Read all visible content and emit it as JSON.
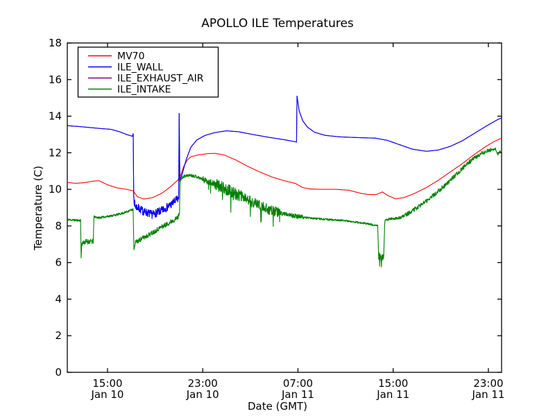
{
  "chart_data": {
    "type": "line",
    "title": "APOLLO ILE Temperatures",
    "xlabel": "Date (GMT)",
    "ylabel": "Temperature (C)",
    "ylim": [
      0,
      18
    ],
    "yticks": [
      0,
      2,
      4,
      6,
      8,
      10,
      12,
      14,
      16,
      18
    ],
    "x_unit": "hours since Jan 10 00:00 GMT",
    "xlim_hours": [
      11.62,
      48.11
    ],
    "xticks": [
      {
        "hour": 15,
        "time": "15:00",
        "date": "Jan 10"
      },
      {
        "hour": 23,
        "time": "23:00",
        "date": "Jan 10"
      },
      {
        "hour": 31,
        "time": "07:00",
        "date": "Jan 11"
      },
      {
        "hour": 39,
        "time": "15:00",
        "date": "Jan 11"
      },
      {
        "hour": 47,
        "time": "23:00",
        "date": "Jan 11"
      }
    ],
    "grid": false,
    "legend_position": "upper left",
    "series": [
      {
        "name": "MV70",
        "color": "#ff0000",
        "keypoints": [
          [
            11.62,
            10.38
          ],
          [
            12.3,
            10.33
          ],
          [
            13.0,
            10.36
          ],
          [
            13.8,
            10.45
          ],
          [
            14.3,
            10.47
          ],
          [
            15.0,
            10.25
          ],
          [
            15.8,
            10.08
          ],
          [
            16.6,
            10.0
          ],
          [
            17.15,
            9.92
          ],
          [
            17.5,
            9.6
          ],
          [
            18.05,
            9.47
          ],
          [
            18.8,
            9.55
          ],
          [
            19.6,
            9.8
          ],
          [
            20.3,
            10.15
          ],
          [
            20.9,
            10.5
          ],
          [
            21.1,
            10.68
          ],
          [
            21.4,
            11.25
          ],
          [
            21.7,
            11.6
          ],
          [
            22.0,
            11.78
          ],
          [
            22.6,
            11.88
          ],
          [
            23.4,
            11.95
          ],
          [
            24.0,
            11.97
          ],
          [
            24.8,
            11.88
          ],
          [
            25.8,
            11.6
          ],
          [
            26.8,
            11.25
          ],
          [
            27.8,
            10.95
          ],
          [
            28.8,
            10.68
          ],
          [
            29.8,
            10.48
          ],
          [
            30.8,
            10.32
          ],
          [
            31.4,
            10.1
          ],
          [
            32.0,
            10.02
          ],
          [
            33.0,
            10.0
          ],
          [
            34.2,
            10.0
          ],
          [
            35.3,
            9.95
          ],
          [
            36.3,
            9.78
          ],
          [
            36.9,
            9.72
          ],
          [
            37.6,
            9.72
          ],
          [
            38.1,
            9.86
          ],
          [
            38.5,
            9.68
          ],
          [
            39.2,
            9.48
          ],
          [
            39.9,
            9.55
          ],
          [
            40.8,
            9.78
          ],
          [
            41.8,
            10.1
          ],
          [
            42.8,
            10.5
          ],
          [
            43.8,
            10.95
          ],
          [
            44.8,
            11.4
          ],
          [
            45.8,
            11.9
          ],
          [
            46.8,
            12.35
          ],
          [
            47.5,
            12.62
          ],
          [
            48.11,
            12.8
          ]
        ],
        "noise": []
      },
      {
        "name": "ILE_WALL",
        "color": "#0000ff",
        "keypoints": [
          [
            11.62,
            13.48
          ],
          [
            12.5,
            13.44
          ],
          [
            13.5,
            13.38
          ],
          [
            14.5,
            13.32
          ],
          [
            15.3,
            13.28
          ],
          [
            16.0,
            13.15
          ],
          [
            16.6,
            13.0
          ],
          [
            17.1,
            12.9
          ],
          [
            17.16,
            13.05
          ],
          [
            17.2,
            9.6
          ],
          [
            17.3,
            9.1
          ],
          [
            18.0,
            8.8
          ],
          [
            18.75,
            8.62
          ],
          [
            19.5,
            8.82
          ],
          [
            20.3,
            9.15
          ],
          [
            20.85,
            9.45
          ],
          [
            20.98,
            9.5
          ],
          [
            21.02,
            14.15
          ],
          [
            21.08,
            10.45
          ],
          [
            21.3,
            10.9
          ],
          [
            21.6,
            11.6
          ],
          [
            22.0,
            12.3
          ],
          [
            22.5,
            12.7
          ],
          [
            23.2,
            12.95
          ],
          [
            24.0,
            13.1
          ],
          [
            25.0,
            13.2
          ],
          [
            26.0,
            13.15
          ],
          [
            27.2,
            13.0
          ],
          [
            28.5,
            12.85
          ],
          [
            29.8,
            12.72
          ],
          [
            30.8,
            12.6
          ],
          [
            30.88,
            12.58
          ],
          [
            30.92,
            15.1
          ],
          [
            31.1,
            14.3
          ],
          [
            31.4,
            13.75
          ],
          [
            31.8,
            13.4
          ],
          [
            32.4,
            13.12
          ],
          [
            33.3,
            12.95
          ],
          [
            34.5,
            12.87
          ],
          [
            36.0,
            12.83
          ],
          [
            37.5,
            12.8
          ],
          [
            38.5,
            12.68
          ],
          [
            39.5,
            12.45
          ],
          [
            40.6,
            12.2
          ],
          [
            41.8,
            12.08
          ],
          [
            42.8,
            12.15
          ],
          [
            43.8,
            12.35
          ],
          [
            44.8,
            12.65
          ],
          [
            45.8,
            13.05
          ],
          [
            46.8,
            13.45
          ],
          [
            47.8,
            13.82
          ],
          [
            48.11,
            13.9
          ]
        ],
        "noise": [
          [
            17.22,
            20.96,
            0.22
          ]
        ]
      },
      {
        "name": "ILE_EXHAUST_AIR",
        "color": "#800080",
        "keypoints": [
          [
            11.62,
            13.48
          ],
          [
            12.5,
            13.44
          ],
          [
            13.5,
            13.38
          ],
          [
            14.5,
            13.32
          ],
          [
            15.3,
            13.28
          ],
          [
            16.0,
            13.15
          ],
          [
            16.6,
            13.0
          ],
          [
            17.1,
            12.9
          ],
          [
            17.16,
            13.05
          ],
          [
            17.2,
            9.6
          ],
          [
            17.3,
            9.1
          ],
          [
            18.0,
            8.8
          ],
          [
            18.75,
            8.62
          ],
          [
            19.5,
            8.82
          ],
          [
            20.3,
            9.15
          ],
          [
            20.85,
            9.45
          ],
          [
            20.98,
            9.5
          ],
          [
            21.02,
            14.15
          ],
          [
            21.08,
            10.45
          ],
          [
            21.3,
            10.9
          ],
          [
            21.6,
            11.6
          ],
          [
            22.0,
            12.3
          ],
          [
            22.5,
            12.7
          ],
          [
            23.2,
            12.95
          ],
          [
            24.0,
            13.1
          ],
          [
            25.0,
            13.2
          ],
          [
            26.0,
            13.15
          ],
          [
            27.2,
            13.0
          ],
          [
            28.5,
            12.85
          ],
          [
            29.8,
            12.72
          ],
          [
            30.8,
            12.6
          ],
          [
            30.88,
            12.58
          ],
          [
            30.92,
            15.1
          ],
          [
            31.1,
            14.3
          ],
          [
            31.4,
            13.75
          ],
          [
            31.8,
            13.4
          ],
          [
            32.4,
            13.12
          ],
          [
            33.3,
            12.95
          ],
          [
            34.5,
            12.87
          ],
          [
            36.0,
            12.83
          ],
          [
            37.5,
            12.8
          ],
          [
            38.5,
            12.68
          ],
          [
            39.5,
            12.45
          ],
          [
            40.6,
            12.2
          ],
          [
            41.8,
            12.08
          ],
          [
            42.8,
            12.15
          ],
          [
            43.8,
            12.35
          ],
          [
            44.8,
            12.65
          ],
          [
            45.8,
            13.05
          ],
          [
            46.8,
            13.45
          ],
          [
            47.8,
            13.82
          ],
          [
            48.11,
            13.9
          ]
        ],
        "noise": [
          [
            17.22,
            20.96,
            0.22
          ]
        ]
      },
      {
        "name": "ILE_INTAKE",
        "color": "#008000",
        "keypoints": [
          [
            11.62,
            8.35
          ],
          [
            12.2,
            8.32
          ],
          [
            12.74,
            8.3
          ],
          [
            12.78,
            6.25
          ],
          [
            12.84,
            7.05
          ],
          [
            13.2,
            7.15
          ],
          [
            13.8,
            7.15
          ],
          [
            13.86,
            8.5
          ],
          [
            14.3,
            8.45
          ],
          [
            15.0,
            8.52
          ],
          [
            15.7,
            8.6
          ],
          [
            16.4,
            8.72
          ],
          [
            17.0,
            8.88
          ],
          [
            17.15,
            8.9
          ],
          [
            17.22,
            6.7
          ],
          [
            17.35,
            7.1
          ],
          [
            18.0,
            7.35
          ],
          [
            18.7,
            7.6
          ],
          [
            19.4,
            7.9
          ],
          [
            20.0,
            8.1
          ],
          [
            20.5,
            8.3
          ],
          [
            20.9,
            8.45
          ],
          [
            21.05,
            8.7
          ],
          [
            21.1,
            10.5
          ],
          [
            21.4,
            10.7
          ],
          [
            21.9,
            10.78
          ],
          [
            22.4,
            10.72
          ],
          [
            23.0,
            10.55
          ],
          [
            23.6,
            10.4
          ],
          [
            24.3,
            10.2
          ],
          [
            25.0,
            10.0
          ],
          [
            25.8,
            9.75
          ],
          [
            26.6,
            9.5
          ],
          [
            27.4,
            9.25
          ],
          [
            28.2,
            9.0
          ],
          [
            29.0,
            8.8
          ],
          [
            29.9,
            8.65
          ],
          [
            31.0,
            8.52
          ],
          [
            32.2,
            8.42
          ],
          [
            33.5,
            8.35
          ],
          [
            34.8,
            8.3
          ],
          [
            36.0,
            8.2
          ],
          [
            37.0,
            8.1
          ],
          [
            37.7,
            8.0
          ],
          [
            37.78,
            6.35
          ],
          [
            38.2,
            6.25
          ],
          [
            38.3,
            8.3
          ],
          [
            38.9,
            8.4
          ],
          [
            39.6,
            8.45
          ],
          [
            40.3,
            8.7
          ],
          [
            41.0,
            9.0
          ],
          [
            41.8,
            9.35
          ],
          [
            42.6,
            9.8
          ],
          [
            43.4,
            10.25
          ],
          [
            44.2,
            10.75
          ],
          [
            45.0,
            11.25
          ],
          [
            45.8,
            11.7
          ],
          [
            46.5,
            12.0
          ],
          [
            47.2,
            12.15
          ],
          [
            47.6,
            12.2
          ],
          [
            47.78,
            11.9
          ],
          [
            47.95,
            12.05
          ],
          [
            48.11,
            12.1
          ]
        ],
        "noise": [
          [
            11.62,
            12.74,
            0.06
          ],
          [
            12.84,
            13.8,
            0.14
          ],
          [
            13.86,
            17.15,
            0.06
          ],
          [
            17.35,
            21.0,
            0.13
          ],
          [
            21.1,
            23.0,
            0.08
          ],
          [
            23.0,
            24.0,
            0.18
          ],
          [
            24.0,
            26.5,
            0.32
          ],
          [
            26.5,
            29.5,
            0.28
          ],
          [
            29.5,
            31.5,
            0.12
          ],
          [
            31.5,
            37.7,
            0.05
          ],
          [
            37.78,
            38.2,
            0.2
          ],
          [
            38.3,
            40.0,
            0.08
          ],
          [
            40.0,
            47.2,
            0.12
          ],
          [
            47.2,
            48.11,
            0.06
          ]
        ]
      }
    ]
  },
  "style_colors": {
    "axis": "#000000",
    "background": "#ffffff",
    "legend_border": "#000000"
  }
}
